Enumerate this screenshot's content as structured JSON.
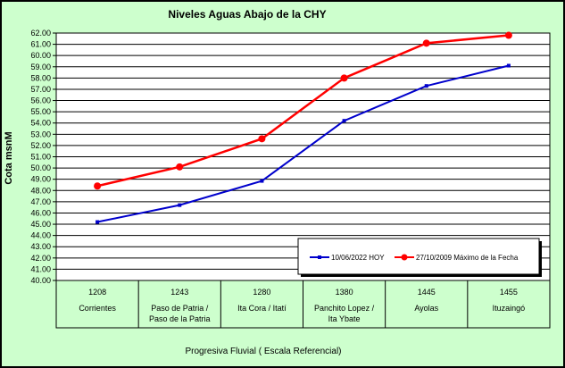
{
  "colors": {
    "background": "#cdffcd",
    "plot_area": "#ffffff",
    "series_hoy": "#0000cc",
    "series_max": "#ff0000"
  },
  "chart_data": {
    "type": "line",
    "title": "Niveles Aguas Abajo de la CHY",
    "xlabel": "Progresiva Fluvial ( Escala Referencial)",
    "ylabel": "Cota msnM",
    "ylim": [
      40,
      62
    ],
    "y_ticks": [
      "40.00",
      "41.00",
      "42.00",
      "43.00",
      "44.00",
      "45.00",
      "46.00",
      "47.00",
      "48.00",
      "49.00",
      "50.00",
      "51.00",
      "52.00",
      "53.00",
      "54.00",
      "55.00",
      "56.00",
      "57.00",
      "58.00",
      "59.00",
      "60.00",
      "61.00",
      "62.00"
    ],
    "grid": true,
    "legend_position": "bottom-right",
    "categories": [
      {
        "code": "1208",
        "name_lines": [
          "Corrientes"
        ]
      },
      {
        "code": "1243",
        "name_lines": [
          "Paso de Patria /",
          "Paso de la Patria"
        ]
      },
      {
        "code": "1280",
        "name_lines": [
          "Ita Cora / Itatí"
        ]
      },
      {
        "code": "1380",
        "name_lines": [
          "Panchito Lopez /",
          "Ita Ybate"
        ]
      },
      {
        "code": "1445",
        "name_lines": [
          "Ayolas"
        ]
      },
      {
        "code": "1455",
        "name_lines": [
          "Ituzaingó"
        ]
      }
    ],
    "series": [
      {
        "name": "10/06/2022  HOY",
        "color": "#0000cc",
        "marker": "square",
        "values": [
          45.2,
          46.7,
          48.85,
          54.2,
          57.3,
          59.1
        ]
      },
      {
        "name": "27/10/2009  Máximo de la Fecha",
        "color": "#ff0000",
        "marker": "circle",
        "values": [
          48.4,
          50.1,
          52.6,
          58.0,
          61.1,
          61.8
        ]
      }
    ]
  }
}
